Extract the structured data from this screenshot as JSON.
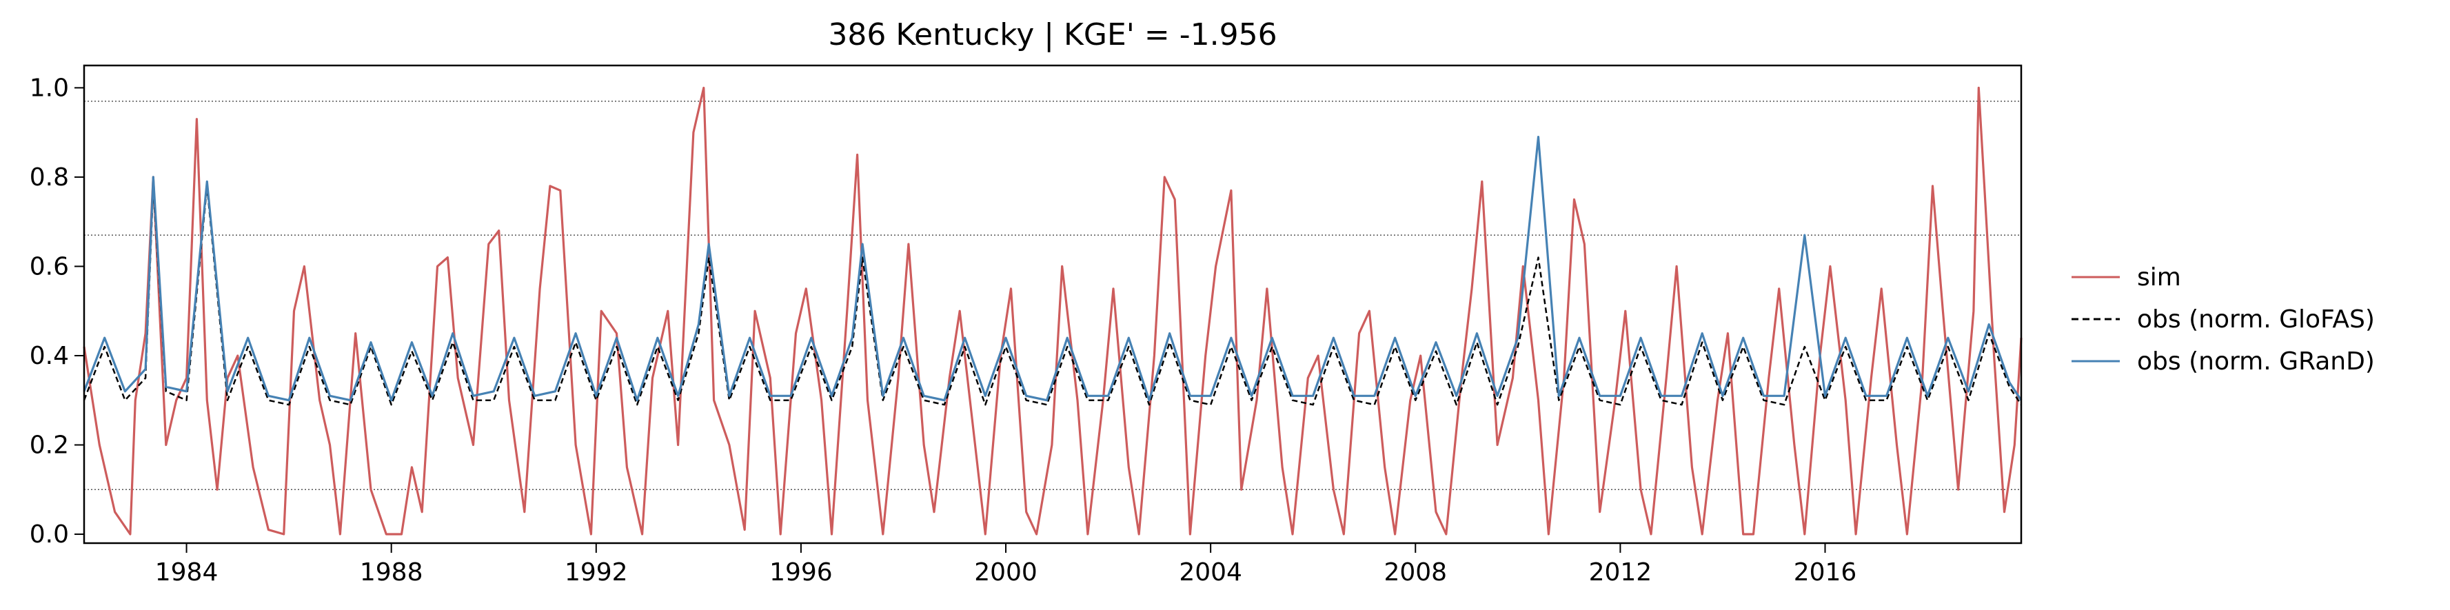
{
  "chart_data": {
    "type": "line",
    "title": "386  Kentucky | KGE' = -1.956",
    "xlabel": "",
    "ylabel": "",
    "xlim": [
      1982.0,
      2019.83
    ],
    "ylim": [
      -0.02,
      1.05
    ],
    "x_ticks": [
      1984,
      1988,
      1992,
      1996,
      2000,
      2004,
      2008,
      2012,
      2016
    ],
    "y_ticks": [
      0.0,
      0.2,
      0.4,
      0.6,
      0.8,
      1.0
    ],
    "reference_lines": [
      0.97,
      0.67,
      0.1
    ],
    "grid": false,
    "legend_position": "right",
    "series": [
      {
        "name": "sim",
        "color": "#cd5c5c",
        "style": "solid",
        "x": [
          1982.0,
          1982.3,
          1982.6,
          1982.9,
          1983.0,
          1983.2,
          1983.35,
          1983.6,
          1983.8,
          1984.0,
          1984.2,
          1984.4,
          1984.6,
          1984.8,
          1985.0,
          1985.3,
          1985.6,
          1985.9,
          1986.1,
          1986.3,
          1986.6,
          1986.8,
          1987.0,
          1987.3,
          1987.6,
          1987.9,
          1988.2,
          1988.4,
          1988.6,
          1988.9,
          1989.1,
          1989.3,
          1989.6,
          1989.9,
          1990.1,
          1990.3,
          1990.6,
          1990.9,
          1991.1,
          1991.3,
          1991.6,
          1991.9,
          1992.1,
          1992.4,
          1992.6,
          1992.9,
          1993.1,
          1993.4,
          1993.6,
          1993.9,
          1994.1,
          1994.3,
          1994.6,
          1994.9,
          1995.1,
          1995.4,
          1995.6,
          1995.9,
          1996.1,
          1996.4,
          1996.6,
          1996.9,
          1997.1,
          1997.3,
          1997.6,
          1997.9,
          1998.1,
          1998.4,
          1998.6,
          1998.9,
          1999.1,
          1999.4,
          1999.6,
          1999.9,
          2000.1,
          2000.4,
          2000.6,
          2000.9,
          2001.1,
          2001.4,
          2001.6,
          2001.9,
          2002.1,
          2002.4,
          2002.6,
          2002.9,
          2003.1,
          2003.3,
          2003.6,
          2003.9,
          2004.1,
          2004.4,
          2004.6,
          2004.9,
          2005.1,
          2005.4,
          2005.6,
          2005.9,
          2006.1,
          2006.4,
          2006.6,
          2006.9,
          2007.1,
          2007.4,
          2007.6,
          2007.9,
          2008.1,
          2008.4,
          2008.6,
          2008.9,
          2009.1,
          2009.3,
          2009.6,
          2009.9,
          2010.1,
          2010.4,
          2010.6,
          2010.9,
          2011.1,
          2011.3,
          2011.6,
          2011.9,
          2012.1,
          2012.4,
          2012.6,
          2012.9,
          2013.1,
          2013.4,
          2013.6,
          2013.9,
          2014.1,
          2014.4,
          2014.6,
          2014.9,
          2015.1,
          2015.4,
          2015.6,
          2015.9,
          2016.1,
          2016.4,
          2016.6,
          2016.9,
          2017.1,
          2017.4,
          2017.6,
          2017.9,
          2018.1,
          2018.3,
          2018.6,
          2018.9,
          2019.0,
          2019.1,
          2019.3,
          2019.5,
          2019.7,
          2019.83
        ],
        "y": [
          0.42,
          0.2,
          0.05,
          0.0,
          0.3,
          0.45,
          0.8,
          0.2,
          0.3,
          0.35,
          0.93,
          0.3,
          0.1,
          0.35,
          0.4,
          0.15,
          0.01,
          0.0,
          0.5,
          0.6,
          0.3,
          0.2,
          0.0,
          0.45,
          0.1,
          0.0,
          0.0,
          0.15,
          0.05,
          0.6,
          0.62,
          0.35,
          0.2,
          0.65,
          0.68,
          0.3,
          0.05,
          0.55,
          0.78,
          0.77,
          0.2,
          0.0,
          0.5,
          0.45,
          0.15,
          0.0,
          0.35,
          0.5,
          0.2,
          0.9,
          1.0,
          0.3,
          0.2,
          0.01,
          0.5,
          0.35,
          0.0,
          0.45,
          0.55,
          0.3,
          0.0,
          0.5,
          0.85,
          0.3,
          0.0,
          0.35,
          0.65,
          0.2,
          0.05,
          0.35,
          0.5,
          0.2,
          0.0,
          0.4,
          0.55,
          0.05,
          0.0,
          0.2,
          0.6,
          0.3,
          0.0,
          0.3,
          0.55,
          0.15,
          0.0,
          0.4,
          0.8,
          0.75,
          0.0,
          0.4,
          0.6,
          0.77,
          0.1,
          0.3,
          0.55,
          0.15,
          0.0,
          0.35,
          0.4,
          0.1,
          0.0,
          0.45,
          0.5,
          0.15,
          0.0,
          0.3,
          0.4,
          0.05,
          0.0,
          0.35,
          0.55,
          0.79,
          0.2,
          0.35,
          0.6,
          0.3,
          0.0,
          0.35,
          0.75,
          0.65,
          0.05,
          0.3,
          0.5,
          0.1,
          0.0,
          0.35,
          0.6,
          0.15,
          0.0,
          0.3,
          0.45,
          0.0,
          0.0,
          0.35,
          0.55,
          0.2,
          0.0,
          0.4,
          0.6,
          0.3,
          0.0,
          0.35,
          0.55,
          0.2,
          0.0,
          0.35,
          0.78,
          0.5,
          0.1,
          0.5,
          1.0,
          0.8,
          0.4,
          0.05,
          0.2,
          0.44
        ]
      },
      {
        "name": "obs (norm. GloFAS)",
        "color": "#000000",
        "style": "dashed",
        "x": [
          1982.0,
          1982.4,
          1982.8,
          1983.2,
          1983.35,
          1983.6,
          1984.0,
          1984.4,
          1984.8,
          1985.2,
          1985.6,
          1986.0,
          1986.4,
          1986.8,
          1987.2,
          1987.6,
          1988.0,
          1988.4,
          1988.8,
          1989.2,
          1989.6,
          1990.0,
          1990.4,
          1990.8,
          1991.2,
          1991.6,
          1992.0,
          1992.4,
          1992.8,
          1993.2,
          1993.6,
          1994.0,
          1994.2,
          1994.6,
          1995.0,
          1995.4,
          1995.8,
          1996.2,
          1996.6,
          1997.0,
          1997.2,
          1997.6,
          1998.0,
          1998.4,
          1998.8,
          1999.2,
          1999.6,
          2000.0,
          2000.4,
          2000.8,
          2001.2,
          2001.6,
          2002.0,
          2002.4,
          2002.8,
          2003.2,
          2003.6,
          2004.0,
          2004.4,
          2004.8,
          2005.2,
          2005.6,
          2006.0,
          2006.4,
          2006.8,
          2007.2,
          2007.6,
          2008.0,
          2008.4,
          2008.8,
          2009.2,
          2009.6,
          2010.0,
          2010.4,
          2010.8,
          2011.2,
          2011.6,
          2012.0,
          2012.4,
          2012.8,
          2013.2,
          2013.6,
          2014.0,
          2014.4,
          2014.8,
          2015.2,
          2015.6,
          2016.0,
          2016.4,
          2016.8,
          2017.2,
          2017.6,
          2018.0,
          2018.4,
          2018.8,
          2019.2,
          2019.6,
          2019.83
        ],
        "y": [
          0.3,
          0.42,
          0.3,
          0.35,
          0.78,
          0.32,
          0.3,
          0.78,
          0.3,
          0.42,
          0.3,
          0.29,
          0.42,
          0.3,
          0.29,
          0.42,
          0.29,
          0.41,
          0.3,
          0.43,
          0.3,
          0.3,
          0.42,
          0.3,
          0.3,
          0.43,
          0.3,
          0.42,
          0.29,
          0.42,
          0.3,
          0.45,
          0.62,
          0.3,
          0.42,
          0.3,
          0.3,
          0.42,
          0.3,
          0.42,
          0.62,
          0.3,
          0.42,
          0.3,
          0.29,
          0.42,
          0.29,
          0.42,
          0.3,
          0.29,
          0.42,
          0.3,
          0.3,
          0.42,
          0.29,
          0.43,
          0.3,
          0.29,
          0.42,
          0.3,
          0.42,
          0.3,
          0.29,
          0.42,
          0.3,
          0.29,
          0.42,
          0.3,
          0.41,
          0.29,
          0.43,
          0.29,
          0.42,
          0.62,
          0.3,
          0.42,
          0.3,
          0.29,
          0.42,
          0.3,
          0.29,
          0.43,
          0.3,
          0.42,
          0.3,
          0.29,
          0.42,
          0.3,
          0.42,
          0.3,
          0.3,
          0.42,
          0.3,
          0.42,
          0.3,
          0.45,
          0.33,
          0.29
        ]
      },
      {
        "name": "obs (norm. GRanD)",
        "color": "#4682b4",
        "style": "solid",
        "x": [
          1982.0,
          1982.4,
          1982.8,
          1983.2,
          1983.35,
          1983.6,
          1984.0,
          1984.4,
          1984.8,
          1985.2,
          1985.6,
          1986.0,
          1986.4,
          1986.8,
          1987.2,
          1987.6,
          1988.0,
          1988.4,
          1988.8,
          1989.2,
          1989.6,
          1990.0,
          1990.4,
          1990.8,
          1991.2,
          1991.6,
          1992.0,
          1992.4,
          1992.8,
          1993.2,
          1993.6,
          1994.0,
          1994.2,
          1994.6,
          1995.0,
          1995.4,
          1995.8,
          1996.2,
          1996.6,
          1997.0,
          1997.2,
          1997.6,
          1998.0,
          1998.4,
          1998.8,
          1999.2,
          1999.6,
          2000.0,
          2000.4,
          2000.8,
          2001.2,
          2001.6,
          2002.0,
          2002.4,
          2002.8,
          2003.2,
          2003.6,
          2004.0,
          2004.4,
          2004.8,
          2005.2,
          2005.6,
          2006.0,
          2006.4,
          2006.8,
          2007.2,
          2007.6,
          2008.0,
          2008.4,
          2008.8,
          2009.2,
          2009.6,
          2010.0,
          2010.4,
          2010.8,
          2011.2,
          2011.6,
          2012.0,
          2012.4,
          2012.8,
          2013.2,
          2013.6,
          2014.0,
          2014.4,
          2014.8,
          2015.2,
          2015.6,
          2016.0,
          2016.4,
          2016.8,
          2017.2,
          2017.6,
          2018.0,
          2018.4,
          2018.8,
          2019.2,
          2019.6,
          2019.83
        ],
        "y": [
          0.32,
          0.44,
          0.32,
          0.37,
          0.8,
          0.33,
          0.32,
          0.79,
          0.32,
          0.44,
          0.31,
          0.3,
          0.44,
          0.31,
          0.3,
          0.43,
          0.3,
          0.43,
          0.31,
          0.45,
          0.31,
          0.32,
          0.44,
          0.31,
          0.32,
          0.45,
          0.31,
          0.44,
          0.3,
          0.44,
          0.31,
          0.47,
          0.65,
          0.31,
          0.44,
          0.31,
          0.31,
          0.44,
          0.31,
          0.44,
          0.65,
          0.31,
          0.44,
          0.31,
          0.3,
          0.44,
          0.31,
          0.44,
          0.31,
          0.3,
          0.44,
          0.31,
          0.31,
          0.44,
          0.3,
          0.45,
          0.31,
          0.31,
          0.44,
          0.31,
          0.44,
          0.31,
          0.31,
          0.44,
          0.31,
          0.31,
          0.44,
          0.31,
          0.43,
          0.31,
          0.45,
          0.31,
          0.44,
          0.89,
          0.31,
          0.44,
          0.31,
          0.31,
          0.44,
          0.31,
          0.31,
          0.45,
          0.31,
          0.44,
          0.31,
          0.31,
          0.67,
          0.31,
          0.44,
          0.31,
          0.31,
          0.44,
          0.31,
          0.44,
          0.32,
          0.47,
          0.34,
          0.3
        ]
      }
    ]
  }
}
